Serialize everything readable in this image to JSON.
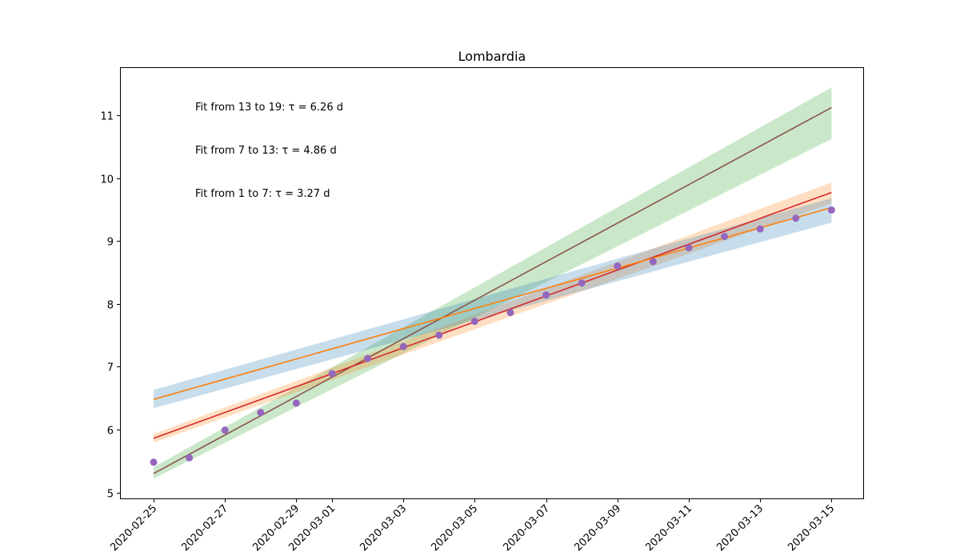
{
  "chart_data": {
    "type": "line",
    "title": "Lombardia",
    "xlabel": "",
    "ylabel": "",
    "x_start": "2020-02-25",
    "xlim": [
      "2020-02-24",
      "2020-03-16"
    ],
    "ylim": [
      4.88,
      11.75
    ],
    "x_ticks": [
      "2020-02-25",
      "2020-02-27",
      "2020-02-29",
      "2020-03-01",
      "2020-03-03",
      "2020-03-05",
      "2020-03-07",
      "2020-03-09",
      "2020-03-11",
      "2020-03-13",
      "2020-03-15"
    ],
    "y_ticks": [
      5,
      6,
      7,
      8,
      9,
      10,
      11
    ],
    "grid": false,
    "annotations": [
      "Fit from 13 to 19: τ = 6.26 d",
      "Fit from 7 to 13: τ = 4.86 d",
      "Fit from 1 to 7: τ = 3.27 d"
    ],
    "points": {
      "color": "#9467bd",
      "x": [
        "2020-02-25",
        "2020-02-26",
        "2020-02-27",
        "2020-02-28",
        "2020-02-29",
        "2020-03-01",
        "2020-03-02",
        "2020-03-03",
        "2020-03-04",
        "2020-03-05",
        "2020-03-06",
        "2020-03-07",
        "2020-03-08",
        "2020-03-09",
        "2020-03-10",
        "2020-03-11",
        "2020-03-12",
        "2020-03-13",
        "2020-03-14",
        "2020-03-15"
      ],
      "y": [
        5.48,
        5.55,
        5.99,
        6.27,
        6.42,
        6.89,
        7.13,
        7.32,
        7.5,
        7.72,
        7.86,
        8.14,
        8.33,
        8.6,
        8.67,
        8.89,
        9.07,
        9.19,
        9.36,
        9.49
      ]
    },
    "series": [
      {
        "x": [
          "2020-02-25",
          "2020-03-15"
        ],
        "y": [
          5.3,
          11.12
        ],
        "color": "#8c564b",
        "band_color": "#2ca02c",
        "band": [
          [
            5.22,
            5.4
          ],
          [
            10.62,
            11.44
          ]
        ]
      },
      {
        "x": [
          "2020-02-25",
          "2020-03-15"
        ],
        "y": [
          5.86,
          9.77
        ],
        "color": "#d62728",
        "band_color": "#ff7f0e",
        "band": [
          [
            5.79,
            5.93
          ],
          [
            9.6,
            9.93
          ]
        ]
      },
      {
        "x": [
          "2020-02-25",
          "2020-03-15"
        ],
        "y": [
          6.48,
          9.53
        ],
        "color": "#ff7f0e",
        "band_color": "#1f77b4",
        "band": [
          [
            6.34,
            6.63
          ],
          [
            9.29,
            9.68
          ]
        ]
      }
    ]
  }
}
